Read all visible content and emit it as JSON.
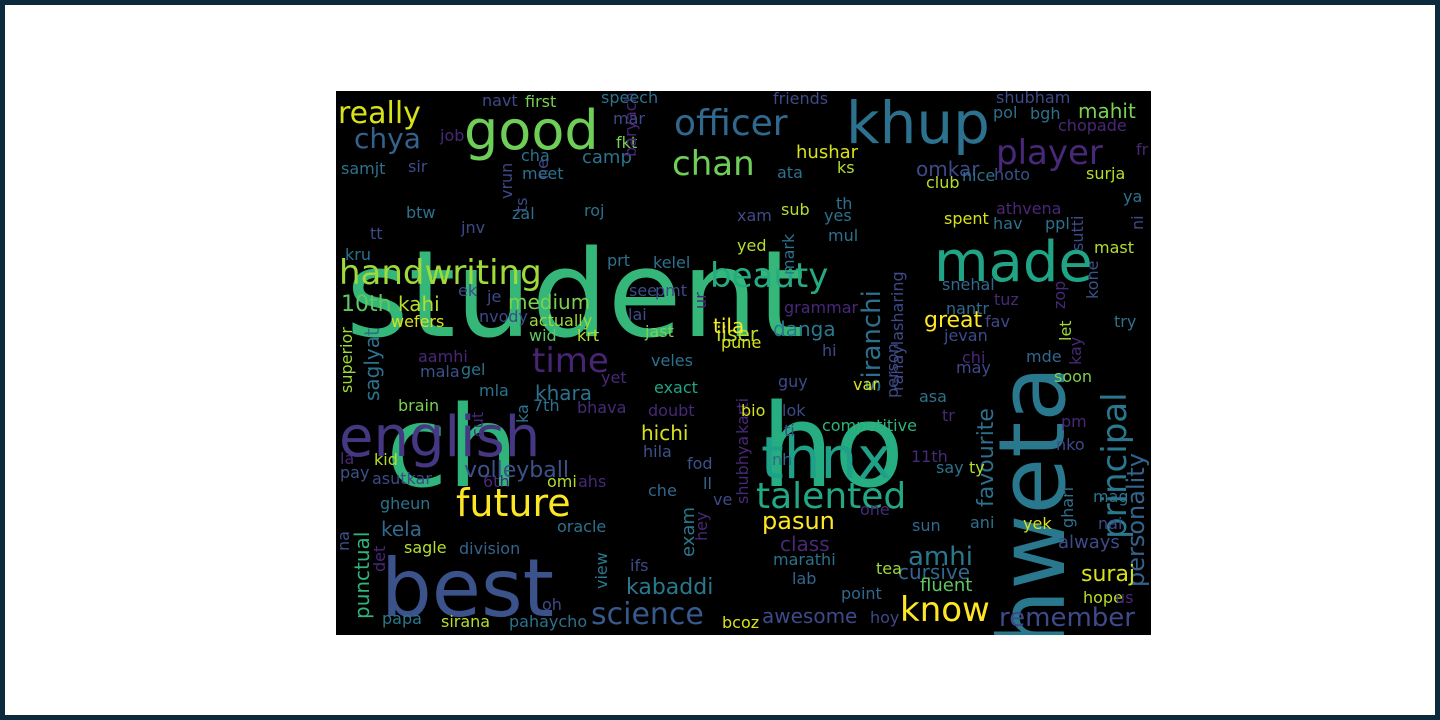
{
  "chart_data": {
    "type": "wordcloud",
    "title": "",
    "background": "#000000",
    "colormap": "viridis",
    "words": [
      {
        "text": "student",
        "color": "#35b779"
      },
      {
        "text": "ch",
        "color": "#2fb47c"
      },
      {
        "text": "ho",
        "color": "#26ad81"
      },
      {
        "text": "shweta",
        "color": "#2a788e"
      },
      {
        "text": "best",
        "color": "#3b528b"
      },
      {
        "text": "english",
        "color": "#453781"
      },
      {
        "text": "thnx",
        "color": "#1fa088"
      },
      {
        "text": "made",
        "color": "#20a486"
      },
      {
        "text": "good",
        "color": "#6ece58"
      },
      {
        "text": "khup",
        "color": "#2c728e"
      },
      {
        "text": "future",
        "color": "#fde725"
      },
      {
        "text": "talented",
        "color": "#22a884"
      },
      {
        "text": "handwriting",
        "color": "#9fda3a"
      },
      {
        "text": "officer",
        "color": "#31688e"
      },
      {
        "text": "principal",
        "color": "#2a788e"
      },
      {
        "text": "beauty",
        "color": "#25ab82"
      },
      {
        "text": "siranchi",
        "color": "#2d708e"
      },
      {
        "text": "chan",
        "color": "#6ece58"
      },
      {
        "text": "player",
        "color": "#482878"
      },
      {
        "text": "really",
        "color": "#d8e219"
      },
      {
        "text": "time",
        "color": "#482475"
      },
      {
        "text": "know",
        "color": "#fde725"
      },
      {
        "text": "chya",
        "color": "#33638d"
      },
      {
        "text": "pasun",
        "color": "#fde725"
      },
      {
        "text": "science",
        "color": "#38598c"
      },
      {
        "text": "amhi",
        "color": "#2a788e"
      },
      {
        "text": "remember",
        "color": "#3e4a89"
      },
      {
        "text": "personality",
        "color": "#33638d"
      },
      {
        "text": "favourite",
        "color": "#2e6f8e"
      },
      {
        "text": "volleyball",
        "color": "#3b528b"
      },
      {
        "text": "kabaddi",
        "color": "#2a788e"
      },
      {
        "text": "cursive",
        "color": "#31688e"
      },
      {
        "text": "awesome",
        "color": "#3e4a89"
      },
      {
        "text": "great",
        "color": "#fde725"
      },
      {
        "text": "suraj",
        "color": "#d8e219"
      },
      {
        "text": "khara",
        "color": "#2c728e"
      },
      {
        "text": "hichi",
        "color": "#d8e219"
      },
      {
        "text": "danga",
        "color": "#2a788e"
      },
      {
        "text": "punctual",
        "color": "#2fb47c"
      },
      {
        "text": "saglyat",
        "color": "#2c728e"
      },
      {
        "text": "medium",
        "color": "#7ad151"
      },
      {
        "text": "10th",
        "color": "#5ec962"
      },
      {
        "text": "kahi",
        "color": "#b5de2b"
      },
      {
        "text": "kela",
        "color": "#31688e"
      },
      {
        "text": "mahit",
        "color": "#7ad151"
      },
      {
        "text": "omkar",
        "color": "#3e4a89"
      },
      {
        "text": "hushar",
        "color": "#d8e219"
      },
      {
        "text": "iiser",
        "color": "#b5de2b"
      },
      {
        "text": "tila",
        "color": "#fde725"
      },
      {
        "text": "exam",
        "color": "#2a788e"
      },
      {
        "text": "class",
        "color": "#482878"
      },
      {
        "text": "always",
        "color": "#3e4a89"
      },
      {
        "text": "camp",
        "color": "#2c728e"
      },
      {
        "text": "surja",
        "color": "#b5de2b"
      },
      {
        "text": "mast",
        "color": "#b5de2b"
      },
      {
        "text": "competitive",
        "color": "#2fb47c"
      },
      {
        "text": "fluent",
        "color": "#5ec962"
      },
      {
        "text": "marathi",
        "color": "#2c728e"
      },
      {
        "text": "point",
        "color": "#31688e"
      },
      {
        "text": "division",
        "color": "#33638d"
      },
      {
        "text": "sagle",
        "color": "#b5de2b"
      },
      {
        "text": "asutkar",
        "color": "#3e4a89"
      },
      {
        "text": "gheun",
        "color": "#2c728e"
      },
      {
        "text": "brain",
        "color": "#7ad151"
      },
      {
        "text": "superior",
        "color": "#9fda3a"
      },
      {
        "text": "aamhi",
        "color": "#482878"
      },
      {
        "text": "wefers",
        "color": "#d8e219"
      },
      {
        "text": "nvody",
        "color": "#3e4a89"
      },
      {
        "text": "actually",
        "color": "#9fda3a"
      },
      {
        "text": "wid",
        "color": "#5ec962"
      },
      {
        "text": "krt",
        "color": "#b5de2b"
      },
      {
        "text": "jast",
        "color": "#7ad151"
      },
      {
        "text": "veles",
        "color": "#2c728e"
      },
      {
        "text": "exact",
        "color": "#20a486"
      },
      {
        "text": "doubt",
        "color": "#482878"
      },
      {
        "text": "hila",
        "color": "#3b528b"
      },
      {
        "text": "fod",
        "color": "#3b528b"
      },
      {
        "text": "oracle",
        "color": "#2c728e"
      },
      {
        "text": "view",
        "color": "#2a788e"
      },
      {
        "text": "ifs",
        "color": "#3e4a89"
      },
      {
        "text": "oh",
        "color": "#3e4a89"
      },
      {
        "text": "pahaycho",
        "color": "#2c728e"
      },
      {
        "text": "sirana",
        "color": "#b5de2b"
      },
      {
        "text": "papa",
        "color": "#2a788e"
      },
      {
        "text": "bcoz",
        "color": "#d8e219"
      },
      {
        "text": "hoy",
        "color": "#3e4a89"
      },
      {
        "text": "lab",
        "color": "#31688e"
      },
      {
        "text": "tea",
        "color": "#9fda3a"
      },
      {
        "text": "hope",
        "color": "#b5de2b"
      },
      {
        "text": "us",
        "color": "#482878"
      },
      {
        "text": "sun",
        "color": "#31688e"
      },
      {
        "text": "ani",
        "color": "#2c728e"
      },
      {
        "text": "yek",
        "color": "#d8e219"
      },
      {
        "text": "ghari",
        "color": "#2c728e"
      },
      {
        "text": "nai",
        "color": "#3e4a89"
      },
      {
        "text": "mag",
        "color": "#2c728e"
      },
      {
        "text": "nko",
        "color": "#3e4a89"
      },
      {
        "text": "pm",
        "color": "#482878"
      },
      {
        "text": "tr",
        "color": "#482878"
      },
      {
        "text": "asa",
        "color": "#2c728e"
      },
      {
        "text": "soon",
        "color": "#7ad151"
      },
      {
        "text": "mde",
        "color": "#31688e"
      },
      {
        "text": "kay",
        "color": "#482878"
      },
      {
        "text": "let",
        "color": "#9fda3a"
      },
      {
        "text": "kone",
        "color": "#3b528b"
      },
      {
        "text": "try",
        "color": "#2c728e"
      },
      {
        "text": "jevan",
        "color": "#3e4a89"
      },
      {
        "text": "chi",
        "color": "#482878"
      },
      {
        "text": "may",
        "color": "#3e4a89"
      },
      {
        "text": "nantr",
        "color": "#31688e"
      },
      {
        "text": "tuz",
        "color": "#482878"
      },
      {
        "text": "snehal",
        "color": "#31688e"
      },
      {
        "text": "fav",
        "color": "#3e4a89"
      },
      {
        "text": "grammar",
        "color": "#482878"
      },
      {
        "text": "rahaylasharing",
        "color": "#3e4a89"
      },
      {
        "text": "person",
        "color": "#3e4a89"
      },
      {
        "text": "var",
        "color": "#d8e219"
      },
      {
        "text": "guy",
        "color": "#3e4a89"
      },
      {
        "text": "hi",
        "color": "#3e4a89"
      },
      {
        "text": "karti",
        "color": "#482878"
      },
      {
        "text": "lok",
        "color": "#3e4a89"
      },
      {
        "text": "bio",
        "color": "#d8e219"
      },
      {
        "text": "ti",
        "color": "#3e4a89"
      },
      {
        "text": "shubhya",
        "color": "#482878"
      },
      {
        "text": "nh",
        "color": "#31688e"
      },
      {
        "text": "ll",
        "color": "#31688e"
      },
      {
        "text": "ve",
        "color": "#3e4a89"
      },
      {
        "text": "hey",
        "color": "#482878"
      },
      {
        "text": "che",
        "color": "#31688e"
      },
      {
        "text": "ahs",
        "color": "#482878"
      },
      {
        "text": "omi",
        "color": "#b5de2b"
      },
      {
        "text": "6th",
        "color": "#482878"
      },
      {
        "text": "kid",
        "color": "#b5de2b"
      },
      {
        "text": "pay",
        "color": "#3b528b"
      },
      {
        "text": "la",
        "color": "#482878"
      },
      {
        "text": "na",
        "color": "#3b528b"
      },
      {
        "text": "det",
        "color": "#482878"
      },
      {
        "text": "mla",
        "color": "#2c728e"
      },
      {
        "text": "gel",
        "color": "#2c728e"
      },
      {
        "text": "mala",
        "color": "#3b528b"
      },
      {
        "text": "ka",
        "color": "#2c728e"
      },
      {
        "text": "7th",
        "color": "#2c728e"
      },
      {
        "text": "bhava",
        "color": "#482878"
      },
      {
        "text": "yet",
        "color": "#482878"
      },
      {
        "text": "cut",
        "color": "#482878"
      },
      {
        "text": "lai",
        "color": "#3e4a89"
      },
      {
        "text": "ur",
        "color": "#482878"
      },
      {
        "text": "pune",
        "color": "#d8e219"
      },
      {
        "text": "prt",
        "color": "#2c728e"
      },
      {
        "text": "see",
        "color": "#3e4a89"
      },
      {
        "text": "pmt",
        "color": "#3e4a89"
      },
      {
        "text": "kelel",
        "color": "#2c728e"
      },
      {
        "text": "je",
        "color": "#3e4a89"
      },
      {
        "text": "ek",
        "color": "#3e4a89"
      },
      {
        "text": "jnv",
        "color": "#3e4a89"
      },
      {
        "text": "kru",
        "color": "#2c728e"
      },
      {
        "text": "tt",
        "color": "#3e4a89"
      },
      {
        "text": "btw",
        "color": "#2c728e"
      },
      {
        "text": "samjt",
        "color": "#2c728e"
      },
      {
        "text": "sir",
        "color": "#3e4a89"
      },
      {
        "text": "vrun",
        "color": "#3e4a89"
      },
      {
        "text": "zal",
        "color": "#2c728e"
      },
      {
        "text": "ts",
        "color": "#3e4a89"
      },
      {
        "text": "ne",
        "color": "#3e4a89"
      },
      {
        "text": "roj",
        "color": "#2c728e"
      },
      {
        "text": "meet",
        "color": "#2c728e"
      },
      {
        "text": "cha",
        "color": "#2c728e"
      },
      {
        "text": "fkt",
        "color": "#7ad151"
      },
      {
        "text": "baryach",
        "color": "#482878"
      },
      {
        "text": "mar",
        "color": "#3e4a89"
      },
      {
        "text": "speech",
        "color": "#2c728e"
      },
      {
        "text": "first",
        "color": "#7ad151"
      },
      {
        "text": "navt",
        "color": "#3e4a89"
      },
      {
        "text": "job",
        "color": "#482878"
      },
      {
        "text": "friends",
        "color": "#3e4a89"
      },
      {
        "text": "shubham",
        "color": "#3e4a89"
      },
      {
        "text": "pol",
        "color": "#2c728e"
      },
      {
        "text": "bgh",
        "color": "#2c728e"
      },
      {
        "text": "chopade",
        "color": "#482878"
      },
      {
        "text": "fr",
        "color": "#482878"
      },
      {
        "text": "ks",
        "color": "#b5de2b"
      },
      {
        "text": "ata",
        "color": "#2c728e"
      },
      {
        "text": "hoto",
        "color": "#3b528b"
      },
      {
        "text": "nice",
        "color": "#2c728e"
      },
      {
        "text": "club",
        "color": "#b5de2b"
      },
      {
        "text": "th",
        "color": "#2c728e"
      },
      {
        "text": "sub",
        "color": "#b5de2b"
      },
      {
        "text": "xam",
        "color": "#3e4a89"
      },
      {
        "text": "yes",
        "color": "#2c728e"
      },
      {
        "text": "mul",
        "color": "#2c728e"
      },
      {
        "text": "yed",
        "color": "#b5de2b"
      },
      {
        "text": "mark",
        "color": "#2c728e"
      },
      {
        "text": "spent",
        "color": "#d8e219"
      },
      {
        "text": "athvena",
        "color": "#482878"
      },
      {
        "text": "hav",
        "color": "#2c728e"
      },
      {
        "text": "ppl",
        "color": "#2c728e"
      },
      {
        "text": "sutti",
        "color": "#3e4a89"
      },
      {
        "text": "ya",
        "color": "#2c728e"
      },
      {
        "text": "ni",
        "color": "#3e4a89"
      },
      {
        "text": "zop",
        "color": "#482878"
      },
      {
        "text": "ty",
        "color": "#b5de2b"
      },
      {
        "text": "say",
        "color": "#2c728e"
      },
      {
        "text": "11th",
        "color": "#482878"
      },
      {
        "text": "one",
        "color": "#482878"
      }
    ]
  }
}
